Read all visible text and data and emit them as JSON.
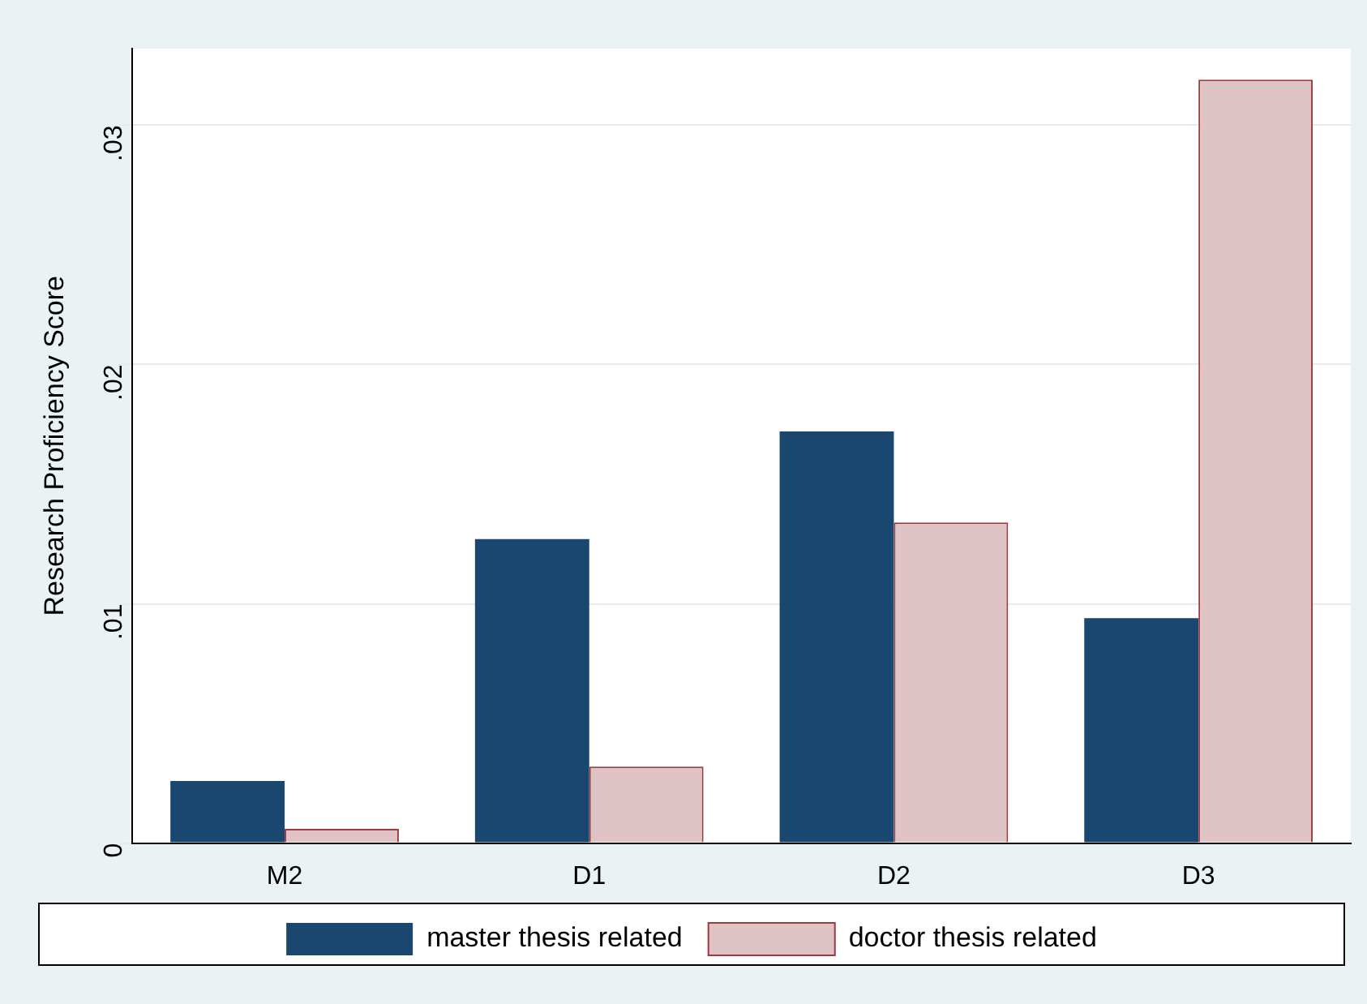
{
  "chart_data": {
    "type": "bar",
    "ylabel": "Research Proficiency Score",
    "categories": [
      "M2",
      "D1",
      "D2",
      "D3"
    ],
    "series": [
      {
        "name": "master thesis related",
        "color": "#1a476f",
        "values": [
          0.0026,
          0.0127,
          0.0172,
          0.0094
        ]
      },
      {
        "name": "doctor thesis related",
        "color": "#e0c3c4",
        "values": [
          0.0006,
          0.0032,
          0.0134,
          0.0319
        ]
      }
    ],
    "ylim": [
      0,
      0.0332
    ],
    "yticks": [
      {
        "value": 0,
        "label": "0"
      },
      {
        "value": 0.01,
        "label": ".01"
      },
      {
        "value": 0.02,
        "label": ".02"
      },
      {
        "value": 0.03,
        "label": ".03"
      }
    ],
    "grid": "y",
    "legend": "bottom"
  }
}
